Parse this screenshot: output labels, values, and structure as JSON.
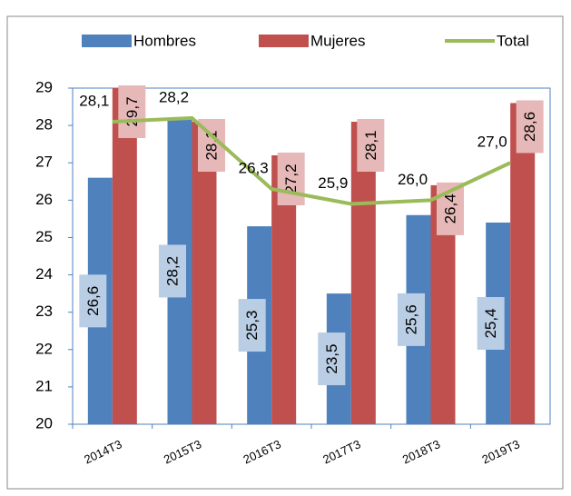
{
  "chart_data": {
    "type": "bar",
    "categories": [
      "2014T3",
      "2015T3",
      "2016T3",
      "2017T3",
      "2018T3",
      "2019T3"
    ],
    "series": [
      {
        "name": "Hombres",
        "color": "#4f81bd",
        "values": [
          26.6,
          28.2,
          25.3,
          23.5,
          25.6,
          25.4
        ],
        "value_labels": [
          "26,6",
          "28,2",
          "25,3",
          "23,5",
          "25,6",
          "25,4"
        ]
      },
      {
        "name": "Mujeres",
        "color": "#c0504d",
        "values": [
          29.7,
          28.1,
          27.2,
          28.1,
          26.4,
          28.6
        ],
        "value_labels": [
          "29,7",
          "28,1",
          "27,2",
          "28,1",
          "26,4",
          "28,6"
        ]
      },
      {
        "name": "Total",
        "type": "line",
        "color": "#9bbb59",
        "values": [
          28.1,
          28.2,
          26.3,
          25.9,
          26.0,
          27.0
        ],
        "value_labels": [
          "28,1",
          "28,2",
          "26,3",
          "25,9",
          "26,0",
          "27,0"
        ]
      }
    ],
    "ylim": [
      20,
      29
    ],
    "yticks": [
      20,
      21,
      22,
      23,
      24,
      25,
      26,
      27,
      28,
      29
    ],
    "legend": "top"
  }
}
